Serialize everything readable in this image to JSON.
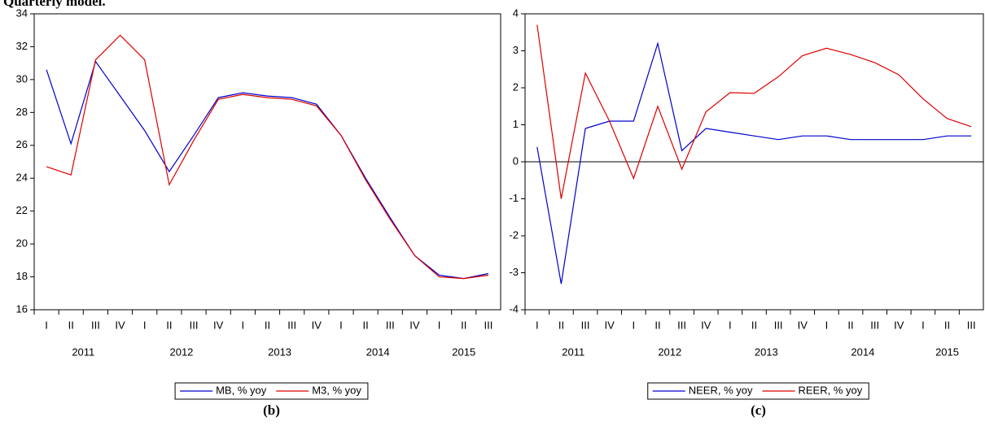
{
  "heading": "Quarterly model.",
  "chart_data": [
    {
      "type": "line",
      "caption": "(b)",
      "categories": [
        "I",
        "II",
        "III",
        "IV",
        "I",
        "II",
        "III",
        "IV",
        "I",
        "II",
        "III",
        "IV",
        "I",
        "II",
        "III",
        "IV",
        "I",
        "II",
        "III"
      ],
      "groups": [
        "2011",
        "2012",
        "2013",
        "2014",
        "2015"
      ],
      "series": [
        {
          "name": "MB, % yoy",
          "color": "#0000cc",
          "values": [
            30.6,
            26.1,
            31.1,
            29.0,
            26.9,
            24.4,
            26.6,
            28.9,
            29.2,
            29.0,
            28.9,
            28.5,
            26.6,
            24.0,
            21.6,
            19.3,
            18.1,
            17.9,
            18.2
          ]
        },
        {
          "name": "M3, % yoy",
          "color": "#dd0000",
          "values": [
            24.7,
            24.2,
            31.2,
            32.7,
            31.2,
            23.6,
            26.3,
            28.8,
            29.1,
            28.9,
            28.8,
            28.4,
            26.6,
            23.9,
            21.5,
            19.3,
            18.0,
            17.9,
            18.1
          ]
        }
      ],
      "ylim": [
        16,
        34
      ],
      "yticks": [
        16,
        18,
        20,
        22,
        24,
        26,
        28,
        30,
        32,
        34
      ],
      "zero_line": false
    },
    {
      "type": "line",
      "caption": "(c)",
      "categories": [
        "I",
        "II",
        "III",
        "IV",
        "I",
        "II",
        "III",
        "IV",
        "I",
        "II",
        "III",
        "IV",
        "I",
        "II",
        "III",
        "IV",
        "I",
        "II",
        "III"
      ],
      "groups": [
        "2011",
        "2012",
        "2013",
        "2014",
        "2015"
      ],
      "series": [
        {
          "name": "NEER, % yoy",
          "color": "#0000cc",
          "values": [
            0.4,
            -3.3,
            0.9,
            1.1,
            1.1,
            3.2,
            0.3,
            0.9,
            0.8,
            0.7,
            0.6,
            0.7,
            0.7,
            0.6,
            0.6,
            0.6,
            0.6,
            0.7,
            0.7
          ]
        },
        {
          "name": "REER, % yoy",
          "color": "#dd0000",
          "values": [
            3.7,
            -1.0,
            2.4,
            1.1,
            -0.45,
            1.5,
            -0.2,
            1.35,
            1.87,
            1.85,
            2.3,
            2.87,
            3.07,
            2.9,
            2.68,
            2.35,
            1.7,
            1.17,
            0.95
          ]
        }
      ],
      "ylim": [
        -4,
        4
      ],
      "yticks": [
        -4,
        -3,
        -2,
        -1,
        0,
        1,
        2,
        3,
        4
      ],
      "zero_line": true
    }
  ]
}
